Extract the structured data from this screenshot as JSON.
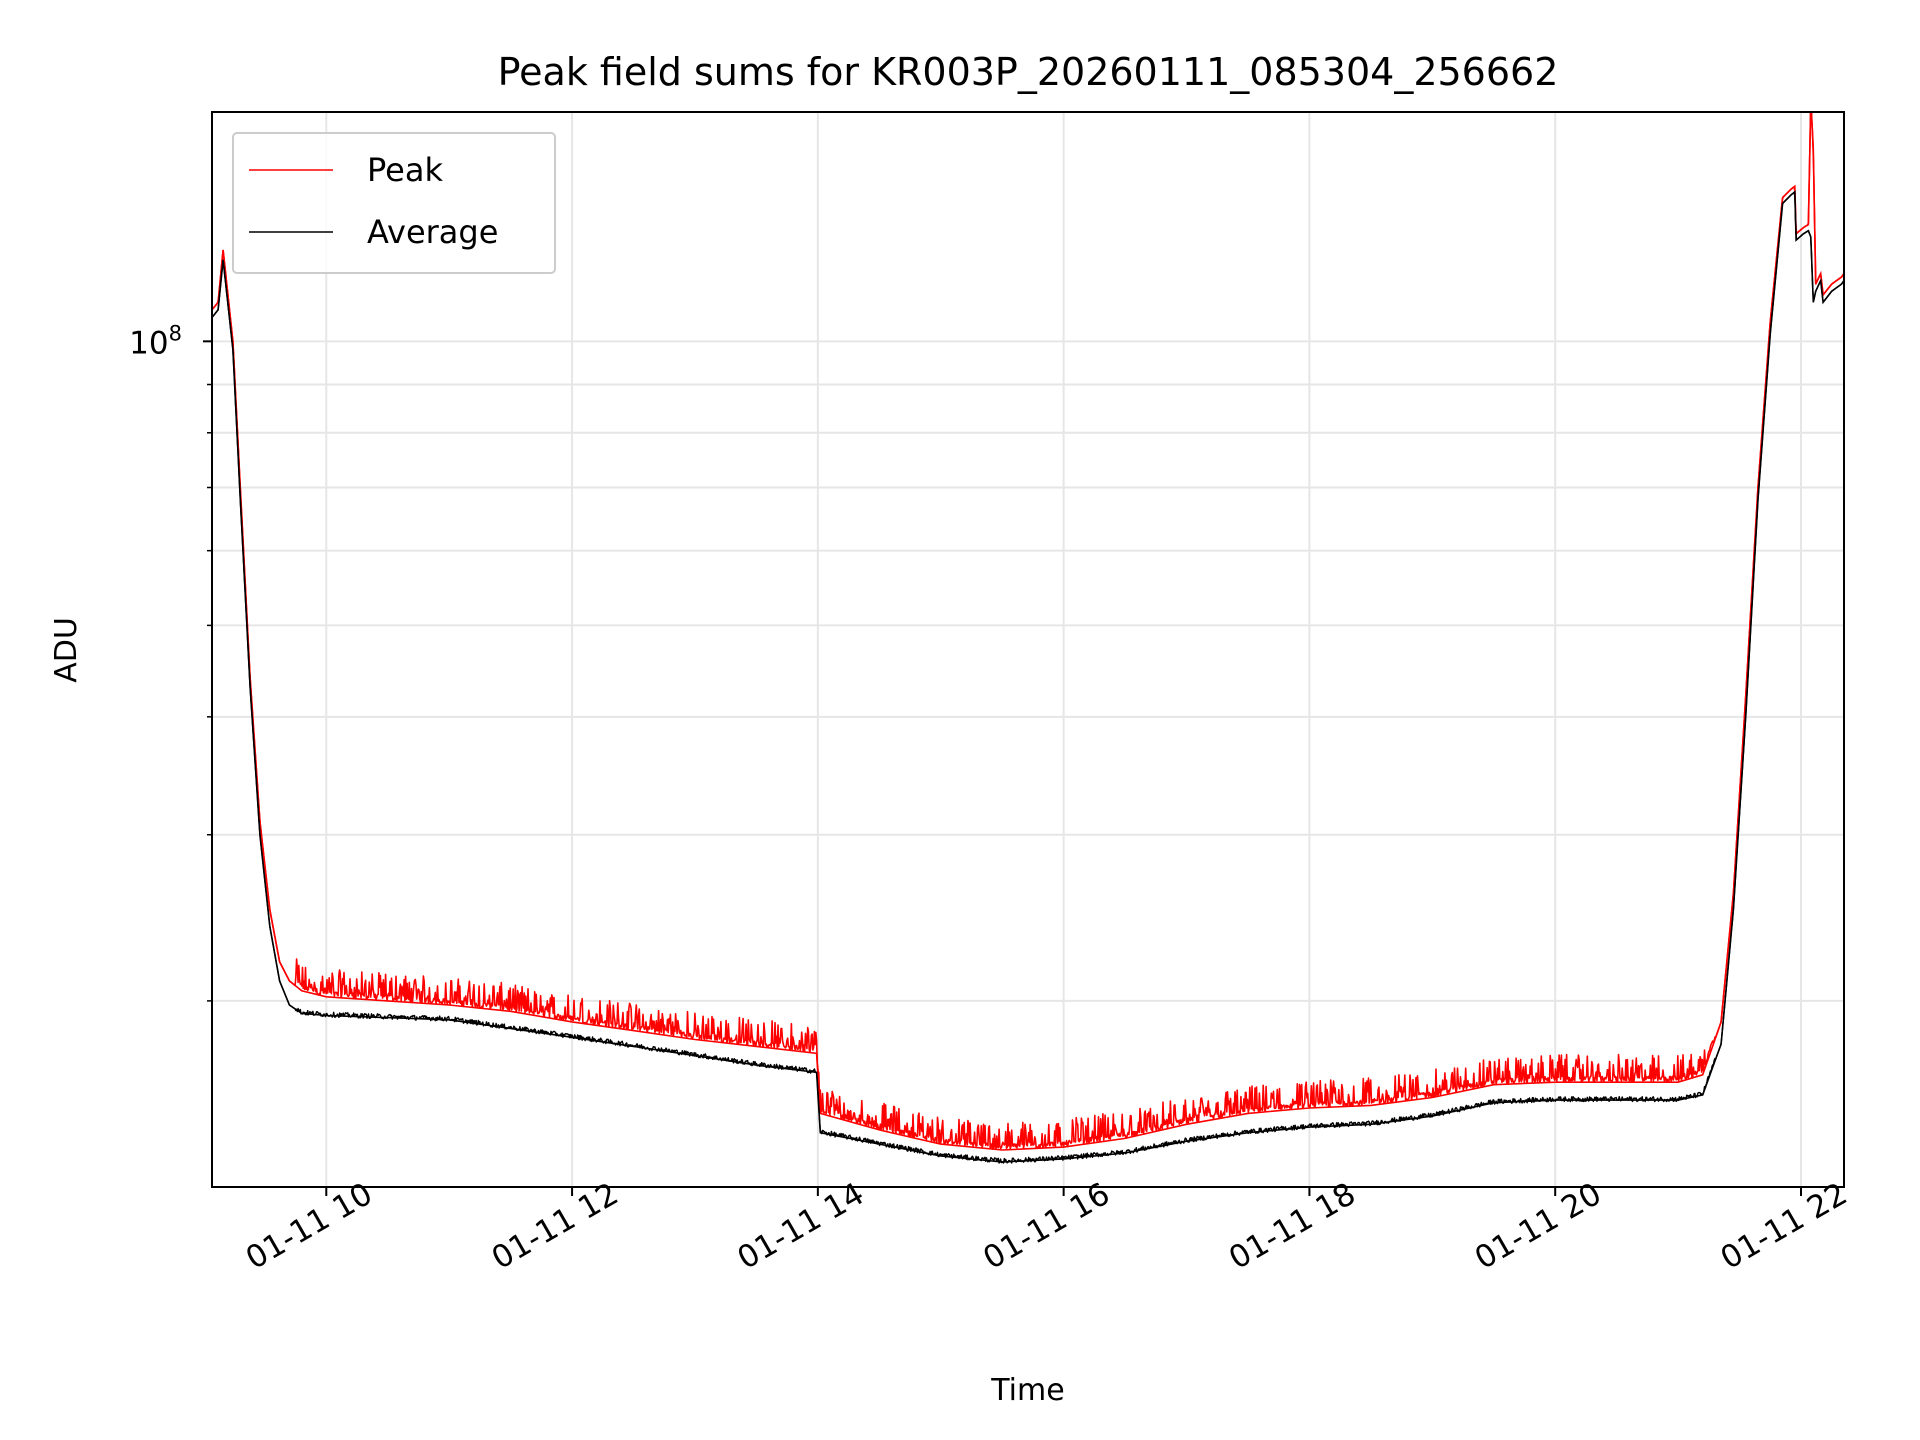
{
  "chart_data": {
    "type": "line",
    "title": "Peak field sums for KR003P_20260111_085304_256662",
    "xlabel": "Time",
    "ylabel": "ADU",
    "yscale": "log",
    "x_unit": "hours (2026-01-11, local time)",
    "xlim": [
      9.07,
      22.35
    ],
    "ylim": [
      12700000.0,
      175000000.0
    ],
    "grid": true,
    "legend_position": "upper left",
    "x_ticks": [
      {
        "value": 10,
        "label": "01-11 10"
      },
      {
        "value": 12,
        "label": "01-11 12"
      },
      {
        "value": 14,
        "label": "01-11 14"
      },
      {
        "value": 16,
        "label": "01-11 16"
      },
      {
        "value": 18,
        "label": "01-11 18"
      },
      {
        "value": 20,
        "label": "01-11 20"
      },
      {
        "value": 22,
        "label": "01-11 22"
      }
    ],
    "y_major_ticks": [
      {
        "value": 100000000,
        "base": "10",
        "exponent": "8"
      }
    ],
    "y_minor_ticks": [
      20000000,
      30000000,
      40000000,
      50000000,
      60000000,
      70000000,
      80000000,
      90000000,
      200000000
    ],
    "series": [
      {
        "name": "Peak",
        "color": "#ff0000",
        "points": [
          [
            9.07,
            108000000.0
          ],
          [
            9.12,
            110000000.0
          ],
          [
            9.16,
            125000000.0
          ],
          [
            9.24,
            100000000.0
          ],
          [
            9.3,
            70000000.0
          ],
          [
            9.38,
            44000000.0
          ],
          [
            9.46,
            31000000.0
          ],
          [
            9.54,
            25000000.0
          ],
          [
            9.62,
            22000000.0
          ],
          [
            9.7,
            21000000.0
          ],
          [
            9.8,
            20500000.0
          ],
          [
            10.0,
            20200000.0
          ],
          [
            10.5,
            20000000.0
          ],
          [
            11.0,
            19800000.0
          ],
          [
            11.5,
            19500000.0
          ],
          [
            12.0,
            19000000.0
          ],
          [
            12.5,
            18600000.0
          ],
          [
            13.0,
            18200000.0
          ],
          [
            13.5,
            17900000.0
          ],
          [
            13.99,
            17600000.0
          ],
          [
            14.02,
            15200000.0
          ],
          [
            14.5,
            14600000.0
          ],
          [
            15.0,
            14100000.0
          ],
          [
            15.5,
            13900000.0
          ],
          [
            16.0,
            14000000.0
          ],
          [
            16.5,
            14300000.0
          ],
          [
            17.0,
            14800000.0
          ],
          [
            17.5,
            15200000.0
          ],
          [
            18.0,
            15400000.0
          ],
          [
            18.5,
            15500000.0
          ],
          [
            19.0,
            15800000.0
          ],
          [
            19.5,
            16300000.0
          ],
          [
            20.0,
            16400000.0
          ],
          [
            20.5,
            16400000.0
          ],
          [
            21.0,
            16400000.0
          ],
          [
            21.2,
            16700000.0
          ],
          [
            21.35,
            19000000.0
          ],
          [
            21.45,
            26000000.0
          ],
          [
            21.55,
            42000000.0
          ],
          [
            21.65,
            70000000.0
          ],
          [
            21.75,
            105000000.0
          ],
          [
            21.85,
            142000000.0
          ],
          [
            21.92,
            145000000.0
          ],
          [
            21.95,
            146000000.0
          ],
          [
            21.96,
            130000000.0
          ],
          [
            22.02,
            132000000.0
          ],
          [
            22.06,
            133000000.0
          ],
          [
            22.08,
            180000000.0
          ],
          [
            22.1,
            160000000.0
          ],
          [
            22.12,
            115000000.0
          ],
          [
            22.16,
            118000000.0
          ],
          [
            22.18,
            112000000.0
          ],
          [
            22.25,
            115000000.0
          ],
          [
            22.33,
            117000000.0
          ],
          [
            22.35,
            118000000.0
          ]
        ]
      },
      {
        "name": "Average",
        "color": "#000000",
        "points": [
          [
            9.07,
            106000000.0
          ],
          [
            9.12,
            108000000.0
          ],
          [
            9.16,
            122000000.0
          ],
          [
            9.24,
            98000000.0
          ],
          [
            9.3,
            68000000.0
          ],
          [
            9.38,
            43000000.0
          ],
          [
            9.46,
            30000000.0
          ],
          [
            9.54,
            24000000.0
          ],
          [
            9.62,
            21000000.0
          ],
          [
            9.7,
            19800000.0
          ],
          [
            9.8,
            19400000.0
          ],
          [
            10.0,
            19300000.0
          ],
          [
            10.5,
            19200000.0
          ],
          [
            11.0,
            19100000.0
          ],
          [
            11.5,
            18700000.0
          ],
          [
            12.0,
            18300000.0
          ],
          [
            12.5,
            17900000.0
          ],
          [
            13.0,
            17500000.0
          ],
          [
            13.5,
            17100000.0
          ],
          [
            13.99,
            16800000.0
          ],
          [
            14.02,
            14500000.0
          ],
          [
            14.5,
            14100000.0
          ],
          [
            15.0,
            13700000.0
          ],
          [
            15.5,
            13500000.0
          ],
          [
            16.0,
            13600000.0
          ],
          [
            16.5,
            13800000.0
          ],
          [
            17.0,
            14200000.0
          ],
          [
            17.5,
            14500000.0
          ],
          [
            18.0,
            14700000.0
          ],
          [
            18.5,
            14800000.0
          ],
          [
            19.0,
            15100000.0
          ],
          [
            19.5,
            15600000.0
          ],
          [
            20.0,
            15700000.0
          ],
          [
            20.5,
            15700000.0
          ],
          [
            21.0,
            15700000.0
          ],
          [
            21.2,
            15900000.0
          ],
          [
            21.35,
            18000000.0
          ],
          [
            21.45,
            25000000.0
          ],
          [
            21.55,
            40000000.0
          ],
          [
            21.65,
            68000000.0
          ],
          [
            21.75,
            102000000.0
          ],
          [
            21.85,
            140000000.0
          ],
          [
            21.92,
            143000000.0
          ],
          [
            21.95,
            144000000.0
          ],
          [
            21.96,
            128000000.0
          ],
          [
            22.02,
            130000000.0
          ],
          [
            22.06,
            131000000.0
          ],
          [
            22.08,
            129000000.0
          ],
          [
            22.1,
            110000000.0
          ],
          [
            22.12,
            113000000.0
          ],
          [
            22.16,
            116000000.0
          ],
          [
            22.18,
            110000000.0
          ],
          [
            22.25,
            113000000.0
          ],
          [
            22.33,
            115000000.0
          ],
          [
            22.35,
            116000000.0
          ]
        ]
      }
    ]
  }
}
